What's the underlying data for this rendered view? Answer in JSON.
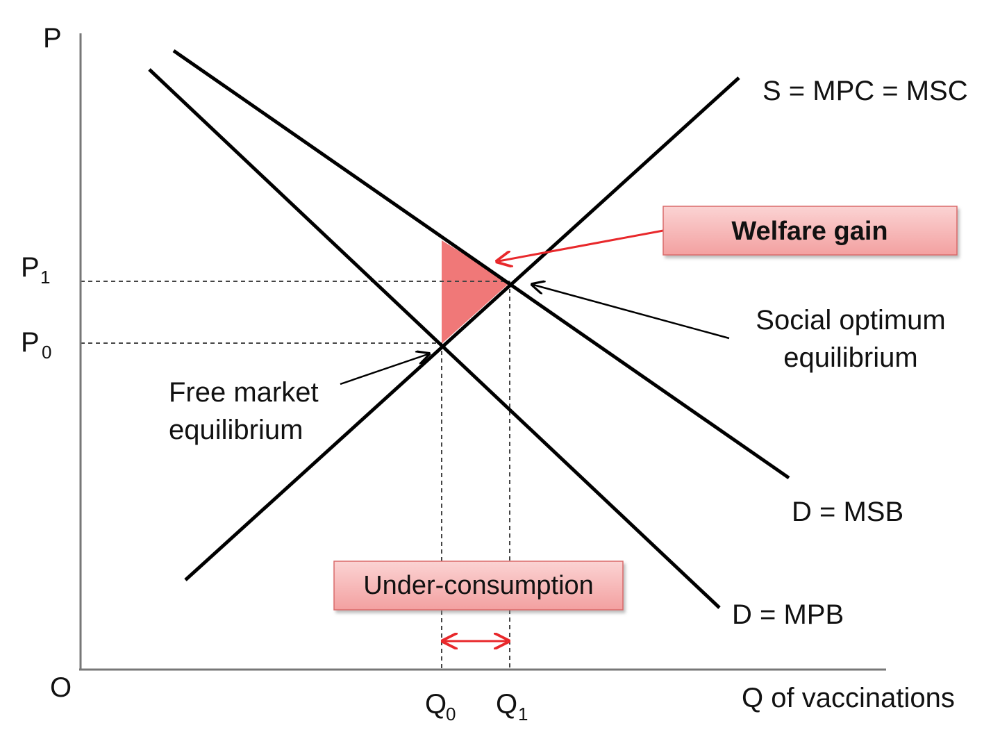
{
  "axes": {
    "y_label": "P",
    "x_label": "Q of vaccinations",
    "origin_label": "O",
    "p1": {
      "main": "P",
      "sub": "1"
    },
    "p0": {
      "main": "P",
      "sub": "0"
    },
    "q0": {
      "main": "Q",
      "sub": "0"
    },
    "q1": {
      "main": "Q",
      "sub": "1"
    }
  },
  "curves": {
    "supply": "S = MPC = MSC",
    "msb": "D = MSB",
    "mpb": "D = MPB"
  },
  "annotations": {
    "welfare_gain": "Welfare gain",
    "under_consumption": "Under-consumption",
    "social_optimum_line1": "Social optimum",
    "social_optimum_line2": "equilibrium",
    "free_market_line1": "Free market",
    "free_market_line2": "equilibrium"
  },
  "colors": {
    "line": "#000000",
    "arrow_red": "#e8282b",
    "box_fill": "#f3a7a7",
    "triangle_fill": "#f07878"
  }
}
